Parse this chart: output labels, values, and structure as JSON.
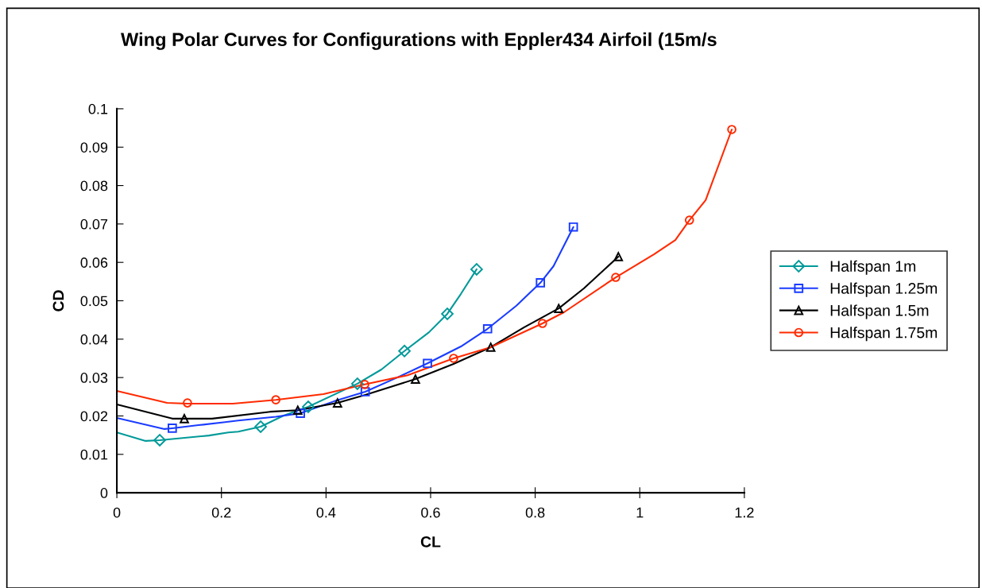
{
  "chart_data": {
    "type": "line",
    "title": "Wing Polar Curves for Configurations with Eppler434 Airfoil (15m/s",
    "xlabel": "CL",
    "ylabel": "CD",
    "xlim": [
      0,
      1.2
    ],
    "xticks": [
      0,
      0.2,
      0.4,
      0.6,
      0.8,
      1,
      1.2
    ],
    "ylim": [
      0,
      0.1
    ],
    "yticks": [
      0,
      0.01,
      0.02,
      0.03,
      0.04,
      0.05,
      0.06,
      0.07,
      0.08,
      0.09,
      0.1
    ],
    "grid": false,
    "legend": "right",
    "line_style": "solid",
    "series": [
      {
        "color": "#009999",
        "marker": "none",
        "x": [
          0,
          0.055,
          0.082,
          0.176,
          0.213,
          0.232,
          0.275,
          0.319,
          0.366,
          0.46,
          0.506,
          0.55,
          0.597,
          0.632,
          0.658,
          0.688
        ],
        "values": [
          0.0157,
          0.0135,
          0.0137,
          0.0149,
          0.0157,
          0.0159,
          0.0172,
          0.0201,
          0.0224,
          0.0284,
          0.0321,
          0.0369,
          0.0418,
          0.0466,
          0.0518,
          0.0582
        ]
      },
      {
        "color": "#1a3cff",
        "marker": "none",
        "x": [
          0,
          0.091,
          0.106,
          0.156,
          0.207,
          0.232,
          0.304,
          0.351,
          0.415,
          0.475,
          0.536,
          0.594,
          0.658,
          0.709,
          0.764,
          0.81,
          0.835,
          0.873
        ],
        "values": [
          0.0195,
          0.0166,
          0.0168,
          0.0176,
          0.0184,
          0.0188,
          0.0198,
          0.0207,
          0.0238,
          0.0263,
          0.03,
          0.0337,
          0.0381,
          0.0427,
          0.0487,
          0.0547,
          0.059,
          0.0692
        ]
      },
      {
        "color": "#000000",
        "marker": "none",
        "x": [
          0,
          0.106,
          0.129,
          0.182,
          0.293,
          0.346,
          0.422,
          0.475,
          0.571,
          0.643,
          0.715,
          0.779,
          0.845,
          0.893,
          0.959
        ],
        "values": [
          0.023,
          0.0193,
          0.0193,
          0.0193,
          0.0211,
          0.0215,
          0.0234,
          0.0255,
          0.0296,
          0.0335,
          0.0379,
          0.0431,
          0.048,
          0.0532,
          0.0615
        ]
      },
      {
        "color": "#ff2a00",
        "marker": "none",
        "x": [
          0,
          0.096,
          0.135,
          0.222,
          0.304,
          0.395,
          0.474,
          0.556,
          0.644,
          0.715,
          0.814,
          0.855,
          0.954,
          1.027,
          1.068,
          1.095,
          1.126,
          1.176
        ],
        "values": [
          0.0265,
          0.0234,
          0.0232,
          0.0232,
          0.0242,
          0.0257,
          0.0282,
          0.0306,
          0.035,
          0.0379,
          0.0441,
          0.047,
          0.0561,
          0.0621,
          0.0658,
          0.071,
          0.0762,
          0.0946
        ]
      },
      {
        "type": "scatter",
        "name": "Halfspan 1m",
        "color": "#009999",
        "marker": "diamond",
        "x": [
          0.082,
          0.275,
          0.366,
          0.46,
          0.55,
          0.632,
          0.688
        ],
        "values": [
          0.0137,
          0.0172,
          0.0224,
          0.0284,
          0.0369,
          0.0466,
          0.0582
        ]
      },
      {
        "type": "scatter",
        "name": "Halfspan 1.25m",
        "color": "#1a3cff",
        "marker": "square",
        "x": [
          0.106,
          0.351,
          0.475,
          0.594,
          0.709,
          0.81,
          0.873
        ],
        "values": [
          0.0168,
          0.0207,
          0.0263,
          0.0337,
          0.0427,
          0.0547,
          0.0692
        ]
      },
      {
        "type": "scatter",
        "name": "Halfspan 1.5m",
        "color": "#000000",
        "marker": "triangle",
        "x": [
          0.129,
          0.346,
          0.422,
          0.571,
          0.715,
          0.845,
          0.959
        ],
        "values": [
          0.0193,
          0.0215,
          0.0234,
          0.0296,
          0.0379,
          0.048,
          0.0615
        ]
      },
      {
        "type": "scatter",
        "name": "Halfspan 1.75m",
        "color": "#ff2a00",
        "marker": "circle",
        "x": [
          0.135,
          0.304,
          0.474,
          0.644,
          0.814,
          0.954,
          1.095,
          1.176
        ],
        "values": [
          0.0234,
          0.0242,
          0.0282,
          0.035,
          0.0441,
          0.0561,
          0.071,
          0.0946
        ]
      }
    ]
  }
}
